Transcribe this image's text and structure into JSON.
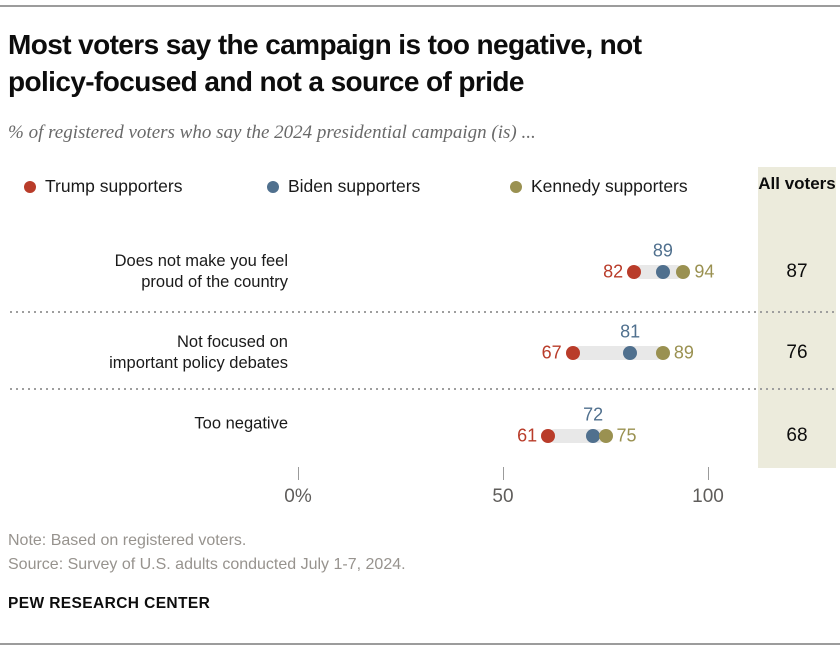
{
  "header": {
    "title": "Most voters say the campaign is too negative, not\npolicy-focused and not a source of pride",
    "subtitle": "% of registered voters who say the 2024 presidential campaign (is) ..."
  },
  "chart_data": {
    "type": "dot-plot",
    "series": [
      {
        "name": "Trump supporters",
        "color": "#b93c2a"
      },
      {
        "name": "Biden supporters",
        "color": "#50708e"
      },
      {
        "name": "Kennedy supporters",
        "color": "#9a9151"
      }
    ],
    "categories": [
      "Does not make you feel proud of the country",
      "Not focused on important policy debates",
      "Too negative"
    ],
    "rows": [
      {
        "label": "Does not make you feel\nproud of the country",
        "values": [
          82,
          89,
          94
        ],
        "all_voters": 87
      },
      {
        "label": "Not focused on\nimportant policy debates",
        "values": [
          67,
          81,
          89
        ],
        "all_voters": 76
      },
      {
        "label": "Too negative",
        "values": [
          61,
          72,
          75
        ],
        "all_voters": 68
      }
    ],
    "all_voters_header": "All voters",
    "x_axis": {
      "range": [
        0,
        100
      ],
      "ticks": [
        {
          "value": 0,
          "label": "0%"
        },
        {
          "value": 50,
          "label": "50"
        },
        {
          "value": 100,
          "label": "100"
        }
      ]
    }
  },
  "colors": {
    "all_voters_bg": "#ecebdc",
    "connector": "#e8e8e8",
    "separator": "#9e9e9e"
  },
  "footer": {
    "note": "Note: Based on registered voters.",
    "source": "Source: Survey of U.S. adults conducted July 1-7, 2024.",
    "brand": "PEW RESEARCH CENTER"
  }
}
